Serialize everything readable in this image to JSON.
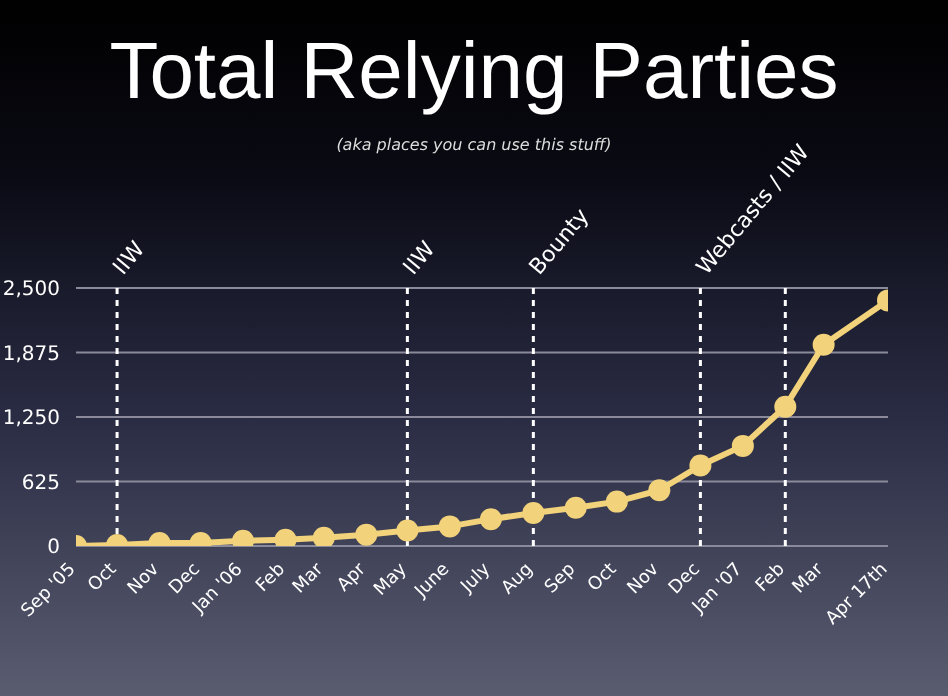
{
  "chart_data": {
    "type": "line",
    "title": "Total Relying Parties",
    "subtitle": "(aka places you can use this stuff)",
    "x": [
      "2005-09",
      "2005-10",
      "2005-11",
      "2005-12",
      "2006-01",
      "2006-02",
      "2006-03",
      "2006-04",
      "2006-05",
      "2006-06",
      "2006-07",
      "2006-08",
      "2006-09",
      "2006-10",
      "2006-11",
      "2006-12",
      "2007-01",
      "2007-02",
      "2007-03",
      "2007-04-17"
    ],
    "xlim": [
      "2005-09",
      "2007-04-17"
    ],
    "xticks": [
      {
        "value": "2005-09",
        "label": "Sep '05"
      },
      {
        "value": "2005-10",
        "label": "Oct"
      },
      {
        "value": "2005-11",
        "label": "Nov"
      },
      {
        "value": "2005-12",
        "label": "Dec"
      },
      {
        "value": "2006-01",
        "label": "Jan '06"
      },
      {
        "value": "2006-02",
        "label": "Feb"
      },
      {
        "value": "2006-03",
        "label": "Mar"
      },
      {
        "value": "2006-04",
        "label": "Apr"
      },
      {
        "value": "2006-05",
        "label": "May"
      },
      {
        "value": "2006-06",
        "label": "June"
      },
      {
        "value": "2006-07",
        "label": "July"
      },
      {
        "value": "2006-08",
        "label": "Aug"
      },
      {
        "value": "2006-09",
        "label": "Sep"
      },
      {
        "value": "2006-10",
        "label": "Oct"
      },
      {
        "value": "2006-11",
        "label": "Nov"
      },
      {
        "value": "2006-12",
        "label": "Dec"
      },
      {
        "value": "2007-01",
        "label": "Jan '07"
      },
      {
        "value": "2007-02",
        "label": "Feb"
      },
      {
        "value": "2007-03",
        "label": "Mar"
      },
      {
        "value": "2007-04-17",
        "label": "Apr 17th"
      }
    ],
    "series": [
      {
        "color": "#f2d27a",
        "values": [
          0,
          10,
          30,
          30,
          50,
          60,
          80,
          110,
          150,
          190,
          260,
          320,
          370,
          430,
          540,
          780,
          970,
          1350,
          1950,
          2380
        ]
      }
    ],
    "ylim": [
      0,
      2500
    ],
    "yticks": [
      0,
      {
        "value": 625,
        "label": "625"
      },
      {
        "value": 1250,
        "label": "1,250"
      },
      {
        "value": 1875,
        "label": "1,875"
      },
      {
        "value": 2500,
        "label": "2,500"
      }
    ],
    "grid": "y",
    "marker": "circle",
    "line_style": "solid",
    "ref_lines": [
      {
        "axis": "x",
        "value": "2005-10",
        "label": "IIW",
        "color": "#ffffff",
        "line_style": "dotted"
      },
      {
        "axis": "x",
        "value": "2006-05",
        "label": "IIW",
        "color": "#ffffff",
        "line_style": "dotted"
      },
      {
        "axis": "x",
        "value": "2006-08",
        "label": "Bounty",
        "color": "#ffffff",
        "line_style": "dotted"
      },
      {
        "axis": "x",
        "value": "2006-12",
        "label": "Webcasts / IIW",
        "color": "#ffffff",
        "line_style": "dotted"
      },
      {
        "axis": "x",
        "value": "2007-02",
        "label": null,
        "color": "#ffffff",
        "line_style": "dotted"
      }
    ]
  }
}
